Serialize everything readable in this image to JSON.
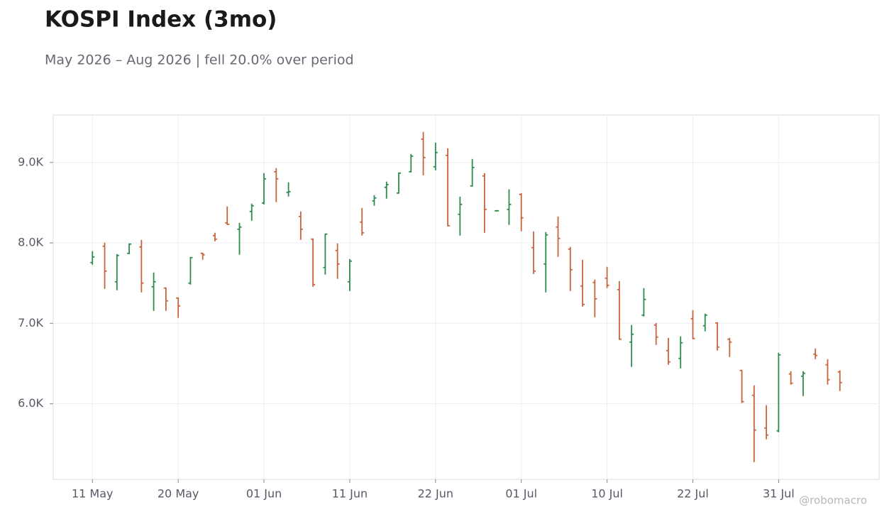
{
  "chart_data": {
    "type": "ohlc",
    "title": "KOSPI Index (3mo)",
    "subtitle": "May 2026 – Aug 2026 | fell 20.0% over period",
    "watermark": "@robomacro",
    "categories": [
      "11 May",
      null,
      null,
      null,
      null,
      null,
      null,
      "20 May",
      null,
      null,
      null,
      null,
      null,
      null,
      "01 Jun",
      null,
      null,
      null,
      null,
      null,
      null,
      "11 Jun",
      null,
      null,
      null,
      null,
      null,
      null,
      "22 Jun",
      null,
      null,
      null,
      null,
      null,
      null,
      "01 Jul",
      null,
      null,
      null,
      null,
      null,
      null,
      "10 Jul",
      null,
      null,
      null,
      null,
      null,
      null,
      "22 Jul",
      null,
      null,
      null,
      null,
      null,
      null,
      "31 Jul",
      null,
      null,
      null,
      null,
      null
    ],
    "open": [
      7756,
      7959,
      7517,
      7870,
      7950,
      7455,
      7438,
      7314,
      7500,
      7870,
      8091,
      8250,
      8170,
      8391,
      8497,
      8885,
      8629,
      8329,
      8047,
      7694,
      7906,
      7517,
      8259,
      8523,
      8691,
      8620,
      8885,
      9291,
      8947,
      9088,
      8356,
      8709,
      8832,
      8399,
      8417,
      8603,
      7941,
      7738,
      8197,
      7923,
      7464,
      7508,
      7561,
      7420,
      6767,
      7102,
      6979,
      6661,
      6564,
      7058,
      6970,
      7005,
      6803,
      6414,
      6105,
      5699,
      5664,
      6370,
      6343,
      6617,
      6485,
      6396
    ],
    "high": [
      7897,
      8003,
      7861,
      7994,
      8038,
      7632,
      7447,
      7323,
      7826,
      7879,
      8126,
      8453,
      8250,
      8488,
      8868,
      8929,
      8753,
      8391,
      8056,
      8117,
      7994,
      7800,
      8435,
      8594,
      8762,
      8876,
      9106,
      9380,
      9247,
      9177,
      8576,
      9044,
      8868,
      8408,
      8665,
      8620,
      8144,
      8135,
      8329,
      7950,
      7791,
      7544,
      7703,
      7526,
      6979,
      7438,
      7005,
      6820,
      6838,
      7164,
      7120,
      7014,
      6820,
      6423,
      6229,
      5982,
      6635,
      6405,
      6405,
      6688,
      6555,
      6414
    ],
    "low": [
      7729,
      7429,
      7411,
      7861,
      7385,
      7155,
      7155,
      7067,
      7482,
      7791,
      8020,
      8223,
      7853,
      8276,
      8479,
      8506,
      8576,
      8038,
      7455,
      7606,
      7553,
      7402,
      8091,
      8462,
      8550,
      8612,
      8876,
      8841,
      8903,
      8206,
      8091,
      8700,
      8126,
      8391,
      8223,
      8144,
      7614,
      7385,
      7826,
      7402,
      7208,
      7076,
      7438,
      6794,
      6458,
      7085,
      6732,
      6485,
      6440,
      6803,
      6900,
      6661,
      6582,
      6009,
      5275,
      5558,
      5646,
      6238,
      6096,
      6555,
      6238,
      6158
    ],
    "close": [
      7826,
      7650,
      7844,
      7985,
      7500,
      7517,
      7279,
      7217,
      7817,
      7853,
      8047,
      8232,
      8197,
      8462,
      8797,
      8797,
      8638,
      8170,
      7482,
      8109,
      7738,
      7773,
      8126,
      8559,
      8726,
      8868,
      9079,
      9062,
      9124,
      8214,
      8479,
      8938,
      8417,
      8400,
      8479,
      8312,
      7650,
      8100,
      8056,
      7667,
      7235,
      7305,
      7473,
      6803,
      6864,
      7297,
      6829,
      6520,
      6758,
      6811,
      7102,
      6705,
      6767,
      6026,
      5673,
      5611,
      6608,
      6255,
      6379,
      6600,
      6299,
      6264
    ],
    "up_color": "#2e8b4e",
    "down_color": "#c8643c",
    "ylim": [
      5060,
      9590
    ],
    "yticks": [
      {
        "value": 6000,
        "label": "6.0K"
      },
      {
        "value": 7000,
        "label": "7.0K"
      },
      {
        "value": 8000,
        "label": "8.0K"
      },
      {
        "value": 9000,
        "label": "9.0K"
      }
    ],
    "grid": true
  }
}
